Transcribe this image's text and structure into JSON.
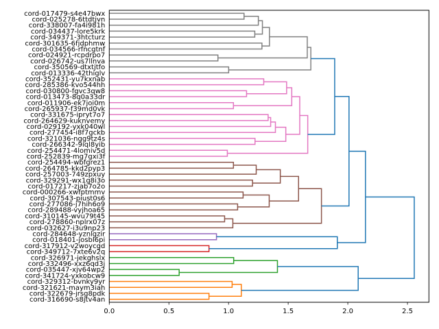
{
  "chart_data": {
    "type": "dendrogram",
    "orientation": "left",
    "title": "",
    "xlabel": "",
    "ylabel": "",
    "xlim": [
      0,
      2.68
    ],
    "x_ticks": [
      "0.0",
      "0.5",
      "1.0",
      "1.5",
      "2.0",
      "2.5"
    ],
    "x_tick_values": [
      0,
      0.5,
      1.0,
      1.5,
      2.0,
      2.5
    ],
    "grid": false,
    "colors": {
      "gray": "#808080",
      "pink": "#e377c2",
      "brown": "#8c564b",
      "purple": "#9467bd",
      "red": "#d62728",
      "green": "#2ca02c",
      "orange": "#ff7f0e",
      "above_threshold": "#1f77b4"
    },
    "leaves": [
      "cord-017479-s4e47bwx",
      "cord-025278-6ttdtjvn",
      "cord-338007-fa4i981h",
      "cord-034437-lore5krk",
      "cord-349371-3htcturz",
      "cord-301635-6fjdphmw",
      "cord-034566-rfncgtnf",
      "cord-024921-rcpdrpo7",
      "cord-026742-us7llnva",
      "cord-350569-dtxtjtfo",
      "cord-013336-42thiglv",
      "cord-352431-yu7kxnab",
      "cord-285386-kvo544hh",
      "cord-030800-fgvc3qw8",
      "cord-013473-8q0a33dr",
      "cord-011906-ek7joi0m",
      "cord-265937-f39md0vk",
      "cord-331675-ipryt7o7",
      "cord-264629-kuknvemy",
      "cord-029192-yxk040wl",
      "cord-277454-i8f7gckb",
      "cord-321036-ngg9tz4s",
      "cord-266342-9iql8yib",
      "cord-254471-4lomiv5d",
      "cord-252839-mg7gxi3f",
      "cord-254494-wbfgrez1",
      "cord-264785-kkd2pyp3",
      "cord-257003-749zpxuy",
      "cord-329291-wx1g8i3o",
      "cord-017217-zjab7o2o",
      "cord-000266-xwfptmmv",
      "cord-307543-piust0s6",
      "cord-277086-j7hih6o9",
      "cord-289488-vyjhoa65",
      "cord-310145-wvu79t45",
      "cord-278860-nplrx07z",
      "cord-032627-i3u9np23",
      "cord-284648-yznlgzir",
      "cord-018401-josbI6pi",
      "cord-317912-v2woycgd",
      "cord-349712-7xte6v2q",
      "cord-326971-jekghslx",
      "cord-332496-xxz6qd3j",
      "cord-035447-xjv64wp2",
      "cord-341724-yxkobcw9",
      "cord-329312-bvnky9yr",
      "cord-321621-maym3iah",
      "cord-322679-jrsg8pdk",
      "cord-316690-s8jtv4an"
    ],
    "tree": {
      "h": 2.557,
      "c": "above_threshold",
      "ch": [
        {
          "h": 2.148,
          "ch": [
            {
              "h": 2.01,
              "ch": [
                {
                  "h": 1.89,
                  "ch": [
                    {
                      "h": 1.69,
                      "c": "gray",
                      "ch": [
                        {
                          "h": 1.66,
                          "ch": [
                            {
                              "h": 1.343,
                              "ch": [
                                {
                                  "h": 1.284,
                                  "ch": [
                                    {
                                      "h": 1.25,
                                      "ch": [
                                        {
                                          "h": 1.13,
                                          "ch": [
                                            0,
                                            1
                                          ]
                                        },
                                        2
                                      ]
                                    },
                                    {
                                      "h": 1.22,
                                      "ch": [
                                        3,
                                        4
                                      ]
                                    }
                                  ]
                                },
                                {
                                  "h": 1.28,
                                  "ch": [
                                    5,
                                    6
                                  ]
                                }
                              ]
                            },
                            {
                              "h": 0.911,
                              "ch": [
                                7,
                                8
                              ]
                            }
                          ]
                        },
                        {
                          "h": 1.001,
                          "ch": [
                            9,
                            10
                          ]
                        }
                      ]
                    },
                    {
                      "h": 1.664,
                      "c": "pink",
                      "ch": [
                        {
                          "h": 1.597,
                          "ch": [
                            {
                              "h": 1.53,
                              "ch": [
                                {
                                  "h": 1.487,
                                  "ch": [
                                    {
                                      "h": 1.295,
                                      "ch": [
                                        11,
                                        12
                                      ]
                                    },
                                    {
                                      "h": 1.151,
                                      "ch": [
                                        13,
                                        14
                                      ]
                                    }
                                  ]
                                },
                                {
                                  "h": 1.041,
                                  "ch": [
                                    15,
                                    16
                                  ]
                                }
                              ]
                            },
                            {
                              "h": 1.48,
                              "ch": [
                                {
                                  "h": 1.393,
                                  "ch": [
                                    {
                                      "h": 1.353,
                                      "ch": [
                                        {
                                          "h": 1.332,
                                          "ch": [
                                            17,
                                            18
                                          ]
                                        },
                                        19
                                      ]
                                    },
                                    20
                                  ]
                                },
                                {
                                  "h": 1.222,
                                  "ch": [
                                    21,
                                    22
                                  ]
                                }
                              ]
                            }
                          ]
                        },
                        {
                          "h": 0.99,
                          "ch": [
                            23,
                            24
                          ]
                        }
                      ]
                    }
                  ]
                },
                {
                  "h": 1.779,
                  "c": "brown",
                  "ch": [
                    {
                      "h": 1.587,
                      "ch": [
                        {
                          "h": 1.434,
                          "ch": [
                            {
                              "h": 1.232,
                              "ch": [
                                {
                                  "h": 1.041,
                                  "ch": [
                                    25,
                                    26
                                  ]
                                },
                                27
                              ]
                            },
                            {
                              "h": 1.201,
                              "ch": [
                                28,
                                29
                              ]
                            }
                          ]
                        },
                        {
                          "h": 1.341,
                          "ch": [
                            {
                              "h": 1.122,
                              "ch": [
                                30,
                                31
                              ]
                            },
                            {
                              "h": 1.076,
                              "ch": [
                                32,
                                33
                              ]
                            }
                          ]
                        }
                      ]
                    },
                    {
                      "h": 1.036,
                      "ch": [
                        {
                          "h": 0.967,
                          "ch": [
                            34,
                            35
                          ]
                        },
                        36
                      ]
                    }
                  ]
                }
              ]
            },
            {
              "h": 1.912,
              "ch": [
                {
                  "h": 0.899,
                  "c": "purple",
                  "ch": [
                    37,
                    38
                  ]
                },
                {
                  "h": 0.836,
                  "c": "red",
                  "ch": [
                    39,
                    40
                  ]
                }
              ]
            }
          ]
        },
        {
          "h": 2.087,
          "ch": [
            {
              "h": 1.41,
              "c": "green",
              "ch": [
                {
                  "h": 1.043,
                  "ch": [
                    41,
                    42
                  ]
                },
                {
                  "h": 0.586,
                  "ch": [
                    43,
                    44
                  ]
                }
              ]
            },
            {
              "h": 1.107,
              "c": "orange",
              "ch": [
                {
                  "h": 1.03,
                  "ch": [
                    45,
                    46
                  ]
                },
                {
                  "h": 0.836,
                  "ch": [
                    47,
                    48
                  ]
                }
              ]
            }
          ]
        }
      ]
    }
  }
}
